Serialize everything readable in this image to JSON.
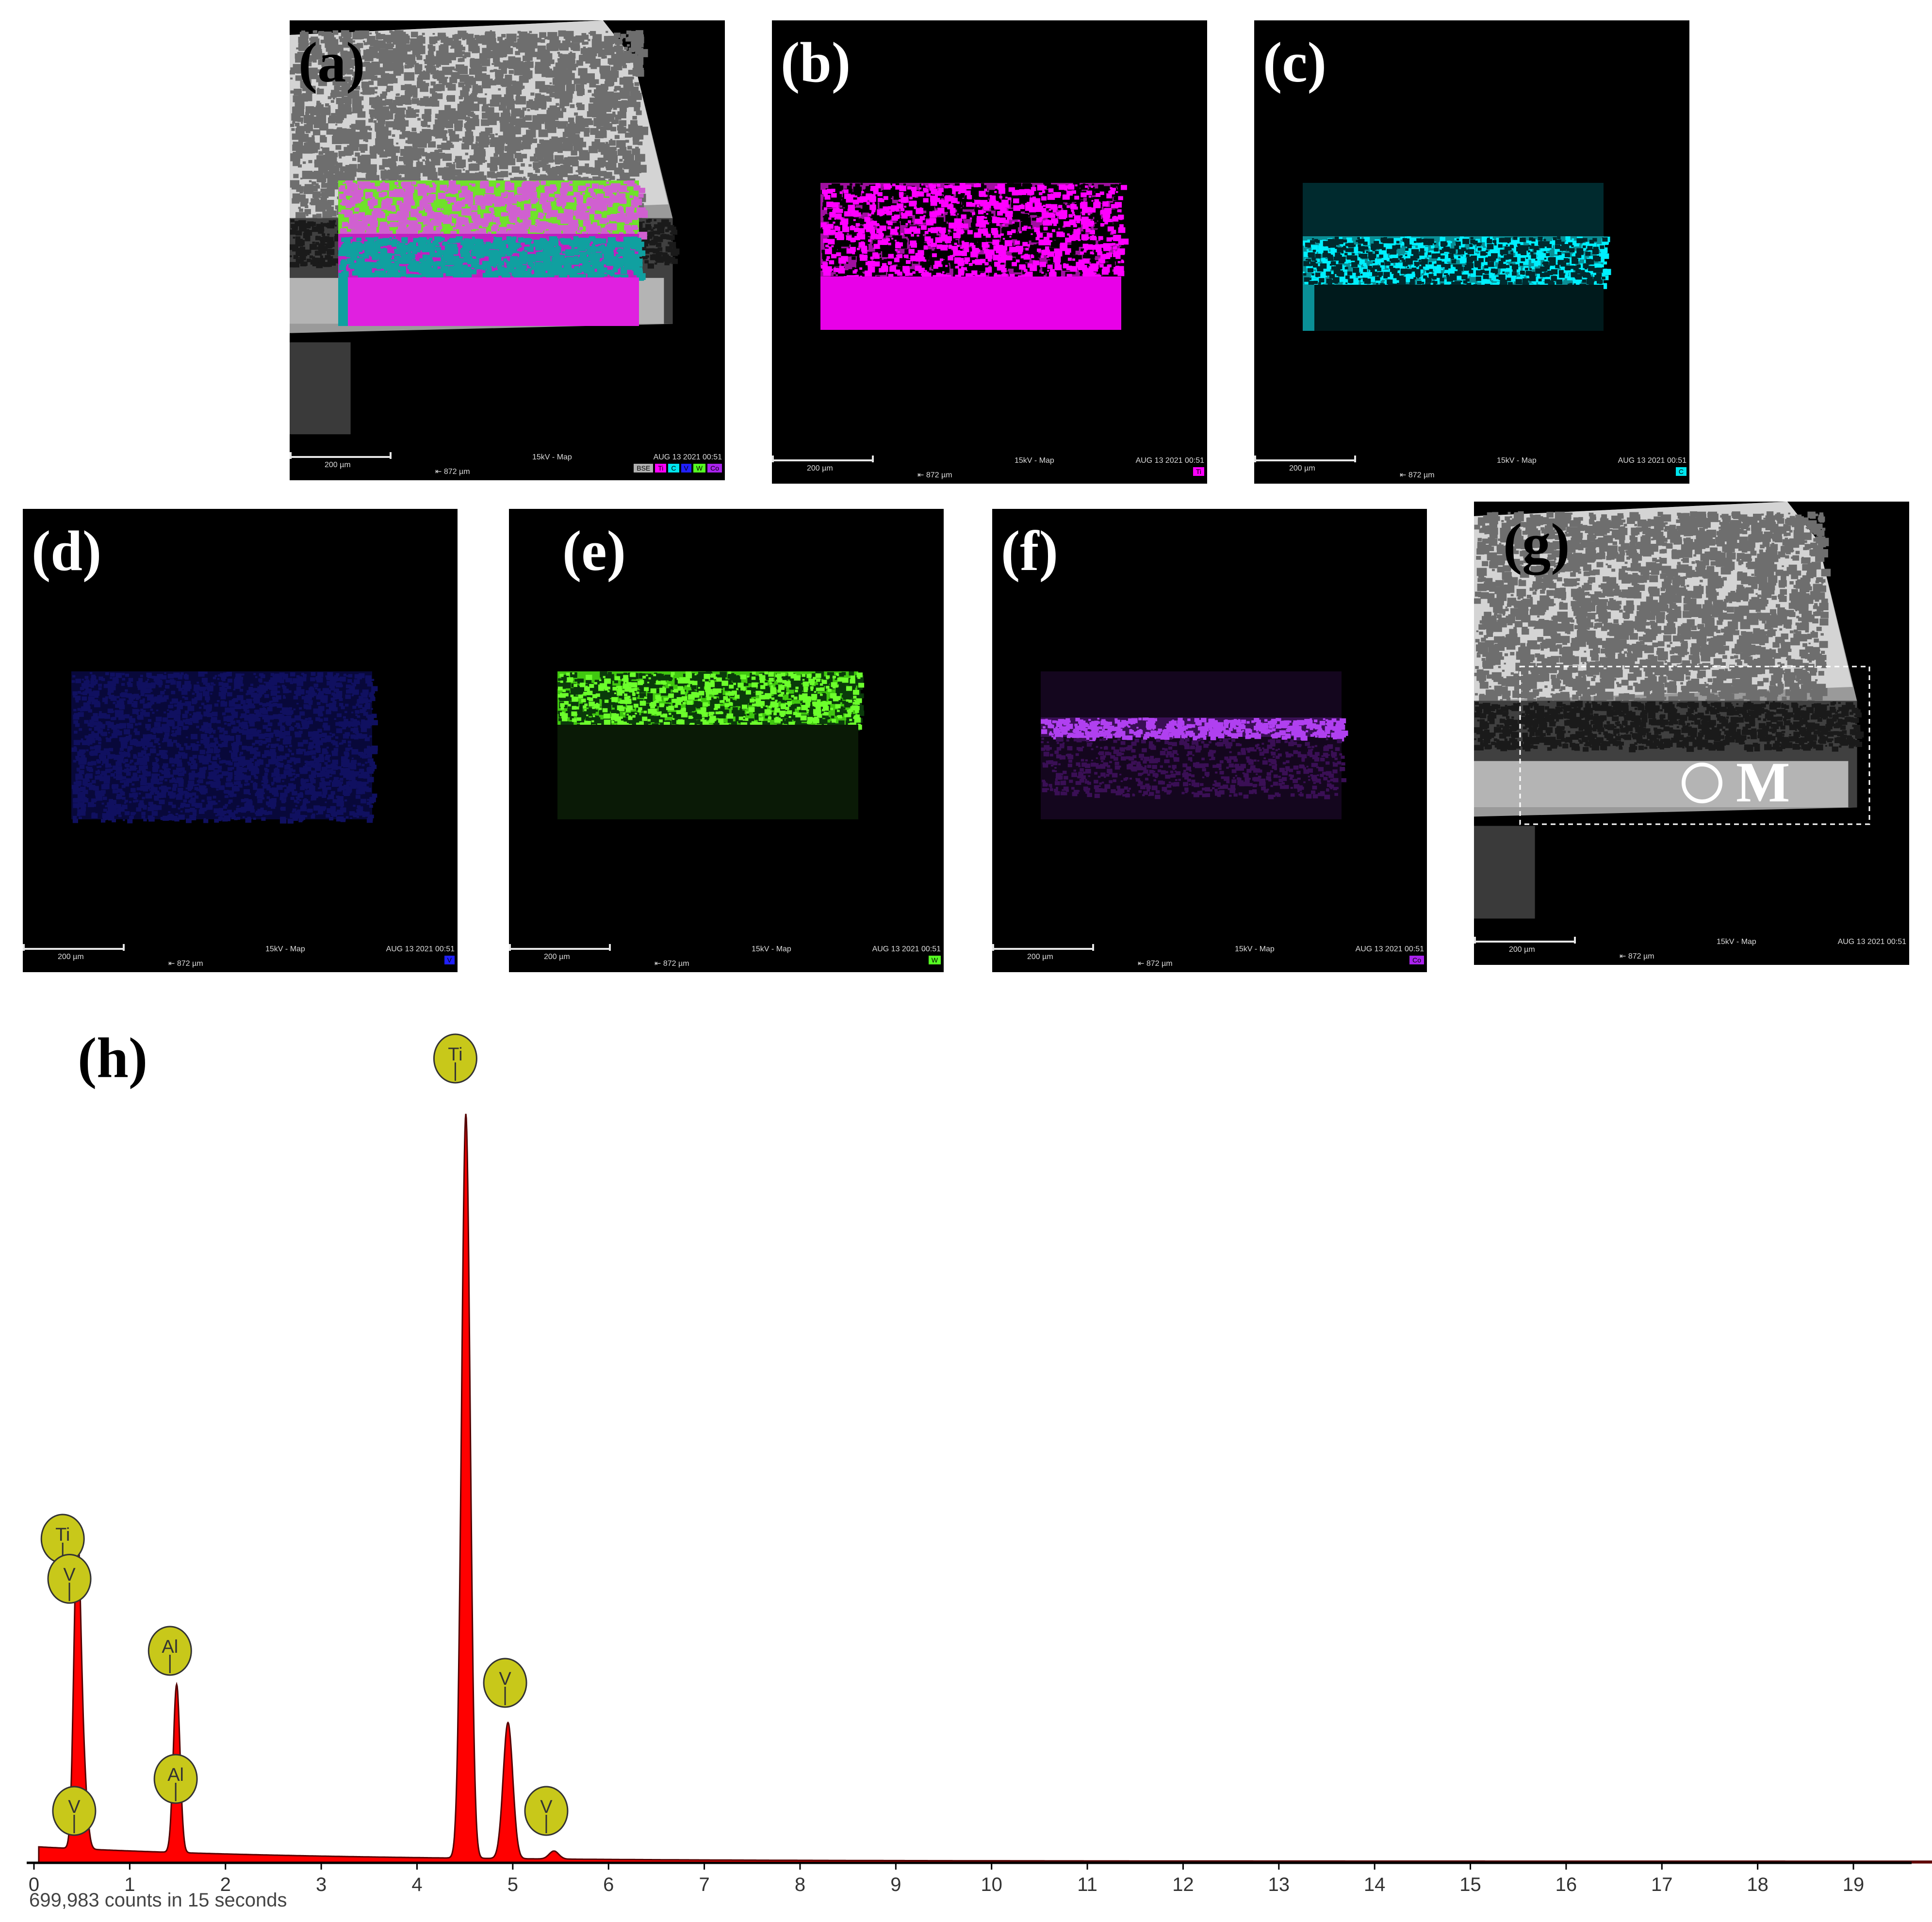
{
  "panels": [
    {
      "id": "a",
      "label": "(a)",
      "kind": "overlay",
      "footer": {
        "scale": "200 µm",
        "fw": "872 µm",
        "mode": "15kV - Map",
        "date": "AUG 13 2021 00:51"
      },
      "badges": [
        {
          "text": "BSE",
          "color": "#b0b0b0"
        },
        {
          "text": "Ti",
          "color": "#ff00ff"
        },
        {
          "text": "C",
          "color": "#00e5ee"
        },
        {
          "text": "V",
          "color": "#2020ff"
        },
        {
          "text": "W",
          "color": "#55ff22"
        },
        {
          "text": "Co",
          "color": "#aa22ee"
        }
      ]
    },
    {
      "id": "b",
      "label": "(b)",
      "kind": "map-ti",
      "footer": {
        "scale": "200 µm",
        "fw": "872 µm",
        "mode": "15kV - Map",
        "date": "AUG 13 2021 00:51"
      },
      "badges": [
        {
          "text": "Ti",
          "color": "#ff00ff"
        }
      ]
    },
    {
      "id": "c",
      "label": "(c)",
      "kind": "map-c",
      "footer": {
        "scale": "200 µm",
        "fw": "872 µm",
        "mode": "15kV - Map",
        "date": "AUG 13 2021 00:51"
      },
      "badges": [
        {
          "text": "C",
          "color": "#00e5ee"
        }
      ]
    },
    {
      "id": "d",
      "label": "(d)",
      "kind": "map-v",
      "footer": {
        "scale": "200 µm",
        "fw": "872 µm",
        "mode": "15kV - Map",
        "date": "AUG 13 2021 00:51"
      },
      "badges": [
        {
          "text": "V",
          "color": "#2020ff"
        }
      ]
    },
    {
      "id": "e",
      "label": "(e)",
      "kind": "map-w",
      "footer": {
        "scale": "200 µm",
        "fw": "872 µm",
        "mode": "15kV - Map",
        "date": "AUG 13 2021 00:51"
      },
      "badges": [
        {
          "text": "W",
          "color": "#55ff22"
        }
      ]
    },
    {
      "id": "f",
      "label": "(f)",
      "kind": "map-co",
      "footer": {
        "scale": "200 µm",
        "fw": "872 µm",
        "mode": "15kV - Map",
        "date": "AUG 13 2021 00:51"
      },
      "badges": [
        {
          "text": "Co",
          "color": "#aa22ee"
        }
      ]
    },
    {
      "id": "g",
      "label": "(g)",
      "kind": "sem",
      "point_label": "M",
      "footer": {
        "scale": "200 µm",
        "fw": "872 µm",
        "mode": "15kV - Map",
        "date": "AUG 13 2021 00:51"
      },
      "badges": []
    }
  ],
  "spectrum": {
    "label": "(h)",
    "caption": "699,983 counts in 15 seconds",
    "colors": {
      "fill": "#ff0000",
      "marker": "#c8c81a"
    }
  },
  "chart_data": {
    "type": "area",
    "title": "",
    "xlabel": "",
    "ylabel": "",
    "xlim": [
      0,
      20
    ],
    "x_ticks": [
      0,
      1,
      2,
      3,
      4,
      5,
      6,
      7,
      8,
      9,
      10,
      11,
      12,
      13,
      14,
      15,
      16,
      17,
      18,
      19
    ],
    "peaks": [
      {
        "element": "Ti",
        "energy": 0.45,
        "height": 0.37,
        "width": 0.035
      },
      {
        "element": "V",
        "energy": 0.51,
        "height": 0.1,
        "width": 0.04
      },
      {
        "element": "Al",
        "energy": 1.49,
        "height": 0.21,
        "width": 0.035
      },
      {
        "element": "Ti",
        "energy": 4.51,
        "height": 0.93,
        "width": 0.045
      },
      {
        "element": "V",
        "energy": 4.95,
        "height": 0.17,
        "width": 0.05
      },
      {
        "element": "V",
        "energy": 5.43,
        "height": 0.01,
        "width": 0.05
      }
    ],
    "annotations": [
      {
        "text": "Ti",
        "x": 0.3,
        "level": 0.4
      },
      {
        "text": "V",
        "x": 0.37,
        "level": 0.35
      },
      {
        "text": "V",
        "x": 0.42,
        "level": 0.06
      },
      {
        "text": "Al",
        "x": 1.42,
        "level": 0.26
      },
      {
        "text": "Al",
        "x": 1.48,
        "level": 0.1
      },
      {
        "text": "Ti",
        "x": 4.4,
        "level": 1.0
      },
      {
        "text": "V",
        "x": 4.92,
        "level": 0.22
      },
      {
        "text": "V",
        "x": 5.35,
        "level": 0.06
      }
    ]
  }
}
